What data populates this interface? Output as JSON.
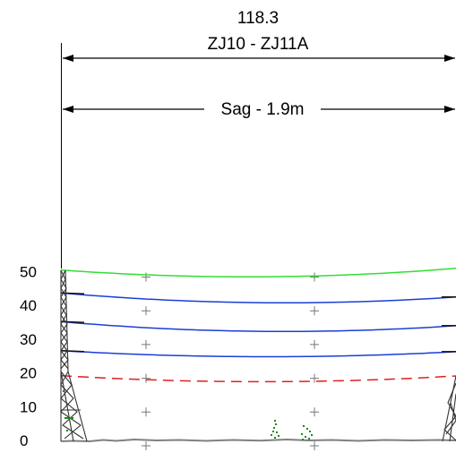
{
  "span": {
    "length_text": "118.3",
    "name_text": "ZJ10 - ZJ11A",
    "sag_text": "Sag - 1.9m"
  },
  "elevation_axis": {
    "ticks": [
      {
        "value": 0,
        "label": "0"
      },
      {
        "value": 10,
        "label": "10"
      },
      {
        "value": 20,
        "label": "20"
      },
      {
        "value": 30,
        "label": "30"
      },
      {
        "value": 40,
        "label": "40"
      },
      {
        "value": 50,
        "label": "50"
      }
    ]
  },
  "structures": [
    {
      "id": "ZJ10",
      "side": "left"
    },
    {
      "id": "ZJ11A",
      "side": "right"
    }
  ],
  "conductors": [
    {
      "kind": "earth-wire",
      "color": "#33dd33",
      "style": "solid",
      "left_elevation": 50.5,
      "low_point_elevation": 48.5,
      "right_elevation": 51.0
    },
    {
      "kind": "phase-conductor",
      "color": "#1a3fd6",
      "style": "solid",
      "left_elevation": 43.7,
      "low_point_elevation": 40.8,
      "right_elevation": 42.5
    },
    {
      "kind": "phase-conductor",
      "color": "#1a3fd6",
      "style": "solid",
      "left_elevation": 35.2,
      "low_point_elevation": 32.3,
      "right_elevation": 34.0
    },
    {
      "kind": "phase-conductor",
      "color": "#1a3fd6",
      "style": "solid",
      "left_elevation": 26.6,
      "low_point_elevation": 24.8,
      "right_elevation": 26.3
    },
    {
      "kind": "clearance-line",
      "color": "#e02020",
      "style": "dashed",
      "left_elevation": 19.2,
      "low_point_elevation": 17.4,
      "right_elevation": 19.1
    }
  ],
  "colors": {
    "ground": "#808080",
    "tower": "#333333",
    "vegetation": "#1a8a1a",
    "grid_marker": "#777777"
  }
}
